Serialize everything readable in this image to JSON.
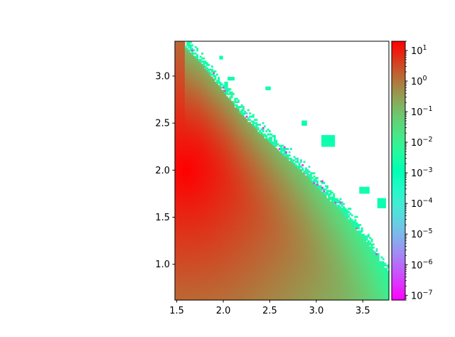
{
  "chart_data": {
    "type": "heatmap",
    "title": "",
    "xlabel": "",
    "ylabel": "",
    "xlim": [
      1.48,
      3.78
    ],
    "ylim": [
      0.62,
      3.37
    ],
    "x_ticks": [
      1.5,
      2.0,
      2.5,
      3.0,
      3.5
    ],
    "x_tick_labels": [
      "1.5",
      "2.0",
      "2.5",
      "3.0",
      "3.5"
    ],
    "y_ticks": [
      1.0,
      1.5,
      2.0,
      2.5,
      3.0
    ],
    "y_tick_labels": [
      "1.0",
      "1.5",
      "2.0",
      "2.5",
      "3.0"
    ],
    "grid": false,
    "colormap": "rainbow",
    "colorbar": {
      "scale": "log",
      "vmin": 7e-08,
      "vmax": 20,
      "ticks": [
        1e-07,
        1e-06,
        1e-05,
        0.0001,
        0.001,
        0.01,
        0.1,
        1,
        10
      ],
      "tick_labels": [
        {
          "base": "10",
          "exp": "−7"
        },
        {
          "base": "10",
          "exp": "−6"
        },
        {
          "base": "10",
          "exp": "−5"
        },
        {
          "base": "10",
          "exp": "−4"
        },
        {
          "base": "10",
          "exp": "−3"
        },
        {
          "base": "10",
          "exp": "−2"
        },
        {
          "base": "10",
          "exp": "−1"
        },
        {
          "base": "10",
          "exp": "0"
        },
        {
          "base": "10",
          "exp": "1"
        }
      ]
    },
    "field": {
      "grid_size": [
        130,
        160
      ],
      "peak_value": 20,
      "peak_location": [
        1.6,
        2.0
      ],
      "edge_value": 0.003,
      "valid_region_boundary": [
        [
          1.58,
          3.37
        ],
        [
          1.75,
          3.22
        ],
        [
          1.88,
          3.05
        ],
        [
          2.05,
          2.85
        ],
        [
          2.2,
          2.65
        ],
        [
          2.4,
          2.45
        ],
        [
          2.62,
          2.25
        ],
        [
          2.85,
          2.05
        ],
        [
          3.05,
          1.85
        ],
        [
          3.25,
          1.65
        ],
        [
          3.45,
          1.42
        ],
        [
          3.65,
          1.15
        ],
        [
          3.78,
          0.95
        ]
      ],
      "noise_band": 0.09,
      "isolated_patches": [
        {
          "x": 3.05,
          "y": 2.25,
          "w": 0.14,
          "h": 0.12
        },
        {
          "x": 3.47,
          "y": 1.75,
          "w": 0.09,
          "h": 0.08
        },
        {
          "x": 3.65,
          "y": 1.6,
          "w": 0.1,
          "h": 0.1
        },
        {
          "x": 2.05,
          "y": 2.95,
          "w": 0.06,
          "h": 0.05
        },
        {
          "x": 1.95,
          "y": 3.18,
          "w": 0.05,
          "h": 0.04
        },
        {
          "x": 2.45,
          "y": 2.85,
          "w": 0.05,
          "h": 0.04
        },
        {
          "x": 2.85,
          "y": 2.48,
          "w": 0.04,
          "h": 0.04
        }
      ]
    }
  }
}
